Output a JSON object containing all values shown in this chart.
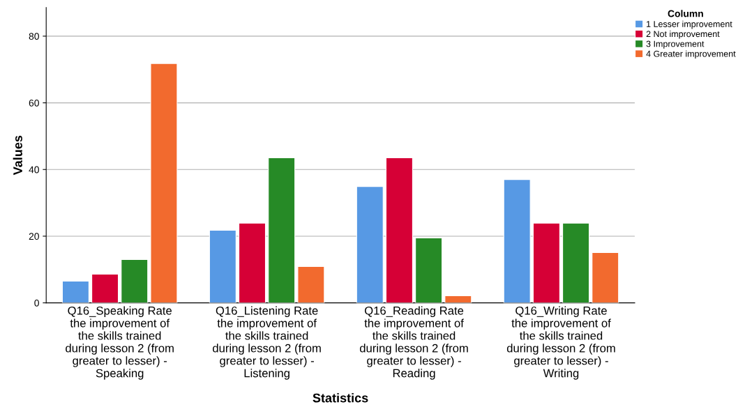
{
  "chart_data": {
    "type": "bar",
    "xlabel": "Statistics",
    "ylabel": "Values",
    "legend_title": "Column",
    "legend": "top right",
    "grid": "y",
    "categories": [
      "Q16_Speaking Rate\nthe improvement of\nthe skills trained\nduring lesson 2 (from\ngreater to lesser) -\nSpeaking",
      "Q16_Listening Rate\nthe improvement of\nthe skills trained\nduring lesson 2 (from\ngreater to lesser) -\nListening",
      "Q16_Reading Rate\nthe improvement of\nthe skills trained\nduring lesson 2 (from\ngreater to lesser) -\nReading",
      "Q16_Writing Rate\nthe improvement of\nthe skills trained\nduring lesson 2 (from\ngreater to lesser) -\nWriting"
    ],
    "series": [
      {
        "name": "1 Lesser improvement",
        "color": "#5799e4",
        "values": [
          6.5,
          21.8,
          34.9,
          37.0
        ]
      },
      {
        "name": "2 Not improvement",
        "color": "#d60036",
        "values": [
          8.6,
          23.9,
          43.5,
          23.9
        ]
      },
      {
        "name": "3 Improvement",
        "color": "#268a26",
        "values": [
          13.0,
          43.5,
          19.5,
          23.9
        ]
      },
      {
        "name": "4 Greater improvement",
        "color": "#f26a2e",
        "values": [
          71.8,
          10.9,
          2.1,
          15.1
        ]
      }
    ],
    "ylim": [
      0,
      88.6
    ],
    "yticks": [
      0,
      20,
      40,
      60,
      80
    ]
  }
}
